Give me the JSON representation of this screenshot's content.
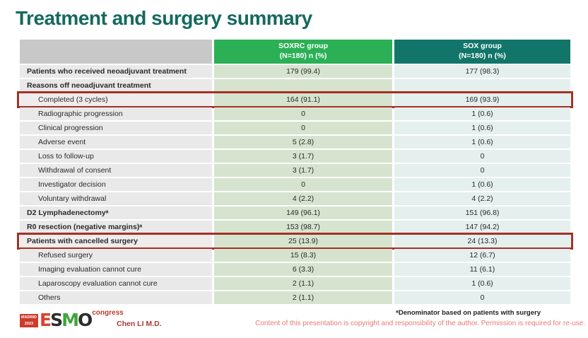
{
  "slide": {
    "title": "Treatment and surgery summary",
    "author": "Chen LI M.D.",
    "footnote": "ᵃDenominator based on patients with surgery",
    "copyright": "Content of this presentation is copyright and responsibility of the author. Permission is required for re-use.",
    "logo": {
      "city": "MADRID",
      "year": "2023",
      "esmo": "ESMO",
      "esmo_colors": [
        "#d8432f",
        "#2d2d2d",
        "#3fa53b",
        "#2d2d2d"
      ],
      "congress": "congress"
    }
  },
  "colors": {
    "title_teal": "#15695e",
    "soxrc_header_green": "#2bb055",
    "sox_header_teal": "#12756a",
    "soxrc_cell_green": "#d6e4cf",
    "sox_cell_blue": "#e4efee",
    "label_cell_gray": "#e9e9e9",
    "highlight_border_red": "#a33126",
    "esmo_badge_red": "#cc3b2c",
    "copyright_pink": "#e87a72"
  },
  "chart_data": {
    "type": "table",
    "title": "Treatment and surgery summary",
    "columns": {
      "label": {
        "line1": "",
        "line2": ""
      },
      "soxrc": {
        "line1": "SOXRC group",
        "line2": "(N=180) n (%)"
      },
      "sox": {
        "line1": "SOX group",
        "line2": "(N=180) n (%)"
      }
    },
    "rows": [
      {
        "label": "Patients who received neoadjuvant treatment",
        "soxrc": "179 (99.4)",
        "sox": "177 (98.3)",
        "bold": true,
        "indent": false,
        "highlight": false
      },
      {
        "label": "Reasons off neoadjuvant treatment",
        "soxrc": "",
        "sox": "",
        "bold": true,
        "indent": false,
        "highlight": false
      },
      {
        "label": "Completed (3 cycles)",
        "soxrc": "164 (91.1)",
        "sox": "169 (93.9)",
        "bold": false,
        "indent": true,
        "highlight": true
      },
      {
        "label": "Radiographic progression",
        "soxrc": "0",
        "sox": "1 (0.6)",
        "bold": false,
        "indent": true,
        "highlight": false
      },
      {
        "label": "Clinical progression",
        "soxrc": "0",
        "sox": "1 (0.6)",
        "bold": false,
        "indent": true,
        "highlight": false
      },
      {
        "label": "Adverse event",
        "soxrc": "5 (2.8)",
        "sox": "1 (0.6)",
        "bold": false,
        "indent": true,
        "highlight": false
      },
      {
        "label": "Loss to follow-up",
        "soxrc": "3 (1.7)",
        "sox": "0",
        "bold": false,
        "indent": true,
        "highlight": false
      },
      {
        "label": "Withdrawal of consent",
        "soxrc": "3 (1.7)",
        "sox": "0",
        "bold": false,
        "indent": true,
        "highlight": false
      },
      {
        "label": "Investigator decision",
        "soxrc": "0",
        "sox": "1 (0.6)",
        "bold": false,
        "indent": true,
        "highlight": false
      },
      {
        "label": "Voluntary withdrawal",
        "soxrc": "4 (2.2)",
        "sox": "4 (2.2)",
        "bold": false,
        "indent": true,
        "highlight": false
      },
      {
        "label": "D2 Lymphadenectomyᵃ",
        "soxrc": "149 (96.1)",
        "sox": "151 (96.8)",
        "bold": true,
        "indent": false,
        "highlight": false
      },
      {
        "label": "R0 resection (negative margins)ᵃ",
        "soxrc": "153 (98.7)",
        "sox": "147 (94.2)",
        "bold": true,
        "indent": false,
        "highlight": false
      },
      {
        "label": "Patients with cancelled surgery",
        "soxrc": "25 (13.9)",
        "sox": "24 (13.3)",
        "bold": true,
        "indent": false,
        "highlight": true
      },
      {
        "label": "Refused surgery",
        "soxrc": "15 (8.3)",
        "sox": "12 (6.7)",
        "bold": false,
        "indent": true,
        "highlight": false
      },
      {
        "label": "Imaging evaluation cannot cure",
        "soxrc": "6 (3.3)",
        "sox": "11 (6.1)",
        "bold": false,
        "indent": true,
        "highlight": false
      },
      {
        "label": "Laparoscopy evaluation cannot cure",
        "soxrc": "2 (1.1)",
        "sox": "1 (0.6)",
        "bold": false,
        "indent": true,
        "highlight": false
      },
      {
        "label": "Others",
        "soxrc": "2 (1.1)",
        "sox": "0",
        "bold": false,
        "indent": true,
        "highlight": false
      }
    ]
  }
}
